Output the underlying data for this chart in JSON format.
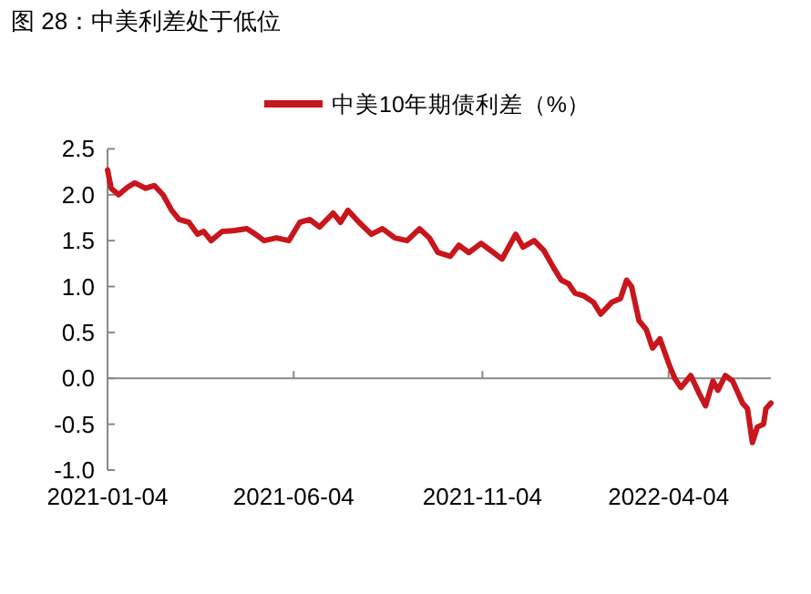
{
  "chart_data": {
    "type": "line",
    "title": "图 28：中美利差处于低位",
    "legend": "top",
    "marker": "none",
    "line_style": "solid",
    "x": [
      "2021-01-04",
      "2021-01-07",
      "2021-01-13",
      "2021-01-20",
      "2021-01-26",
      "2021-02-04",
      "2021-02-11",
      "2021-02-18",
      "2021-02-25",
      "2021-03-03",
      "2021-03-11",
      "2021-03-18",
      "2021-03-23",
      "2021-03-29",
      "2021-04-07",
      "2021-04-17",
      "2021-04-27",
      "2021-05-04",
      "2021-05-11",
      "2021-05-21",
      "2021-05-31",
      "2021-06-09",
      "2021-06-17",
      "2021-06-25",
      "2021-07-06",
      "2021-07-12",
      "2021-07-18",
      "2021-07-27",
      "2021-08-06",
      "2021-08-15",
      "2021-08-25",
      "2021-09-04",
      "2021-09-14",
      "2021-09-22",
      "2021-09-29",
      "2021-10-09",
      "2021-10-16",
      "2021-10-24",
      "2021-11-03",
      "2021-11-13",
      "2021-11-20",
      "2021-12-01",
      "2021-12-07",
      "2021-12-16",
      "2021-12-24",
      "2022-01-01",
      "2022-01-07",
      "2022-01-13",
      "2022-01-18",
      "2022-01-25",
      "2022-02-02",
      "2022-02-08",
      "2022-02-17",
      "2022-02-24",
      "2022-03-01",
      "2022-03-05",
      "2022-03-11",
      "2022-03-17",
      "2022-03-22",
      "2022-03-28",
      "2022-04-05",
      "2022-04-09",
      "2022-04-14",
      "2022-04-22",
      "2022-04-29",
      "2022-05-04",
      "2022-05-10",
      "2022-05-14",
      "2022-05-20",
      "2022-05-26",
      "2022-06-03",
      "2022-06-07",
      "2022-06-11",
      "2022-06-15",
      "2022-06-20",
      "2022-06-22",
      "2022-06-26"
    ],
    "series": [
      {
        "name": "中美10年期债利差（%）",
        "color": "#c8161d",
        "values": [
          2.27,
          2.07,
          2.0,
          2.08,
          2.13,
          2.07,
          2.1,
          2.0,
          1.83,
          1.73,
          1.7,
          1.57,
          1.6,
          1.5,
          1.6,
          1.61,
          1.63,
          1.57,
          1.5,
          1.53,
          1.5,
          1.7,
          1.73,
          1.65,
          1.8,
          1.7,
          1.83,
          1.7,
          1.57,
          1.63,
          1.53,
          1.5,
          1.63,
          1.53,
          1.37,
          1.33,
          1.45,
          1.37,
          1.47,
          1.37,
          1.3,
          1.57,
          1.43,
          1.5,
          1.39,
          1.2,
          1.07,
          1.03,
          0.93,
          0.9,
          0.83,
          0.7,
          0.83,
          0.87,
          1.07,
          1.0,
          0.63,
          0.53,
          0.33,
          0.43,
          0.13,
          0.0,
          -0.1,
          0.03,
          -0.17,
          -0.3,
          -0.03,
          -0.13,
          0.03,
          -0.03,
          -0.27,
          -0.33,
          -0.7,
          -0.53,
          -0.5,
          -0.33,
          -0.27
        ]
      }
    ],
    "xlim": [
      "2021-01-04",
      "2022-06-26"
    ],
    "xticks": [
      {
        "value": "2021-01-04",
        "label": "2021-01-04"
      },
      {
        "value": "2021-06-04",
        "label": "2021-06-04"
      },
      {
        "value": "2021-11-04",
        "label": "2021-11-04"
      },
      {
        "value": "2022-04-04",
        "label": "2022-04-04"
      }
    ],
    "ylim": [
      -1.0,
      2.5
    ],
    "yticks": [
      {
        "value": -1.0,
        "label": "-1.0"
      },
      {
        "value": -0.5,
        "label": "-0.5"
      },
      {
        "value": 0,
        "label": "0.0"
      },
      {
        "value": 0.5,
        "label": "0.5"
      },
      {
        "value": 1.0,
        "label": "1.0"
      },
      {
        "value": 1.5,
        "label": "1.5"
      },
      {
        "value": 2.0,
        "label": "2.0"
      },
      {
        "value": 2.5,
        "label": "2.5"
      }
    ]
  }
}
